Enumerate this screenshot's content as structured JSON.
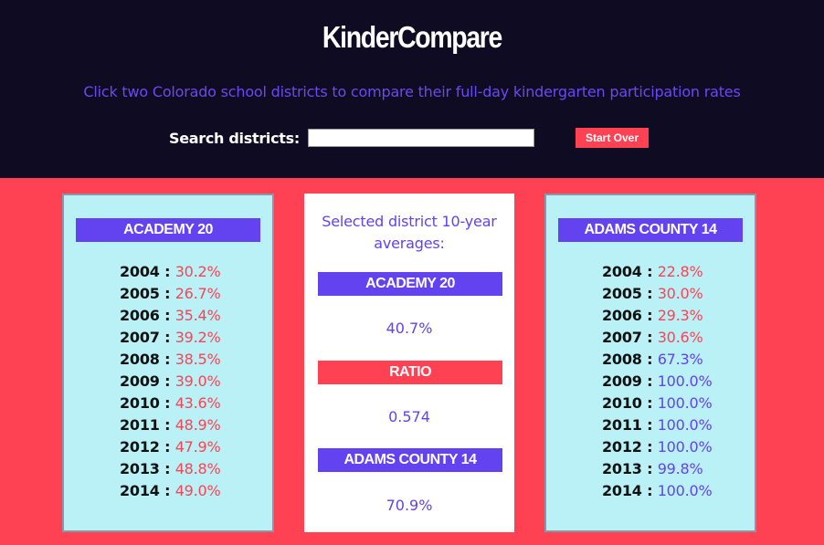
{
  "header": {
    "title": "KinderCompare",
    "subtitle": "Click two Colorado school districts to compare their full-day kindergarten participation rates",
    "search_label": "Search districts:",
    "search_value": "",
    "start_over_label": "Start Over"
  },
  "colors": {
    "header_bg": "#0e0b23",
    "accent_red": "#fe4254",
    "accent_purple": "#6342f0",
    "panel_bg": "#b9f1f6"
  },
  "left_district": {
    "name": "ACADEMY 20",
    "rates": [
      {
        "year": "2004",
        "value": "30.2%"
      },
      {
        "year": "2005",
        "value": "26.7%"
      },
      {
        "year": "2006",
        "value": "35.4%"
      },
      {
        "year": "2007",
        "value": "39.2%"
      },
      {
        "year": "2008",
        "value": "38.5%"
      },
      {
        "year": "2009",
        "value": "39.0%"
      },
      {
        "year": "2010",
        "value": "43.6%"
      },
      {
        "year": "2011",
        "value": "48.9%"
      },
      {
        "year": "2012",
        "value": "47.9%"
      },
      {
        "year": "2013",
        "value": "48.8%"
      },
      {
        "year": "2014",
        "value": "49.0%"
      }
    ]
  },
  "comparison": {
    "title": "Selected district 10-year averages:",
    "district_a_name": "ACADEMY 20",
    "district_a_avg": "40.7%",
    "ratio_label": "RATIO",
    "ratio_value": "0.574",
    "district_b_name": "ADAMS COUNTY 14",
    "district_b_avg": "70.9%"
  },
  "right_district": {
    "name": "ADAMS COUNTY 14",
    "rates": [
      {
        "year": "2004",
        "value": "22.8%"
      },
      {
        "year": "2005",
        "value": "30.0%"
      },
      {
        "year": "2006",
        "value": "29.3%"
      },
      {
        "year": "2007",
        "value": "30.6%"
      },
      {
        "year": "2008",
        "value": "67.3%"
      },
      {
        "year": "2009",
        "value": "100.0%"
      },
      {
        "year": "2010",
        "value": "100.0%"
      },
      {
        "year": "2011",
        "value": "100.0%"
      },
      {
        "year": "2012",
        "value": "100.0%"
      },
      {
        "year": "2013",
        "value": "99.8%"
      },
      {
        "year": "2014",
        "value": "100.0%"
      }
    ]
  }
}
